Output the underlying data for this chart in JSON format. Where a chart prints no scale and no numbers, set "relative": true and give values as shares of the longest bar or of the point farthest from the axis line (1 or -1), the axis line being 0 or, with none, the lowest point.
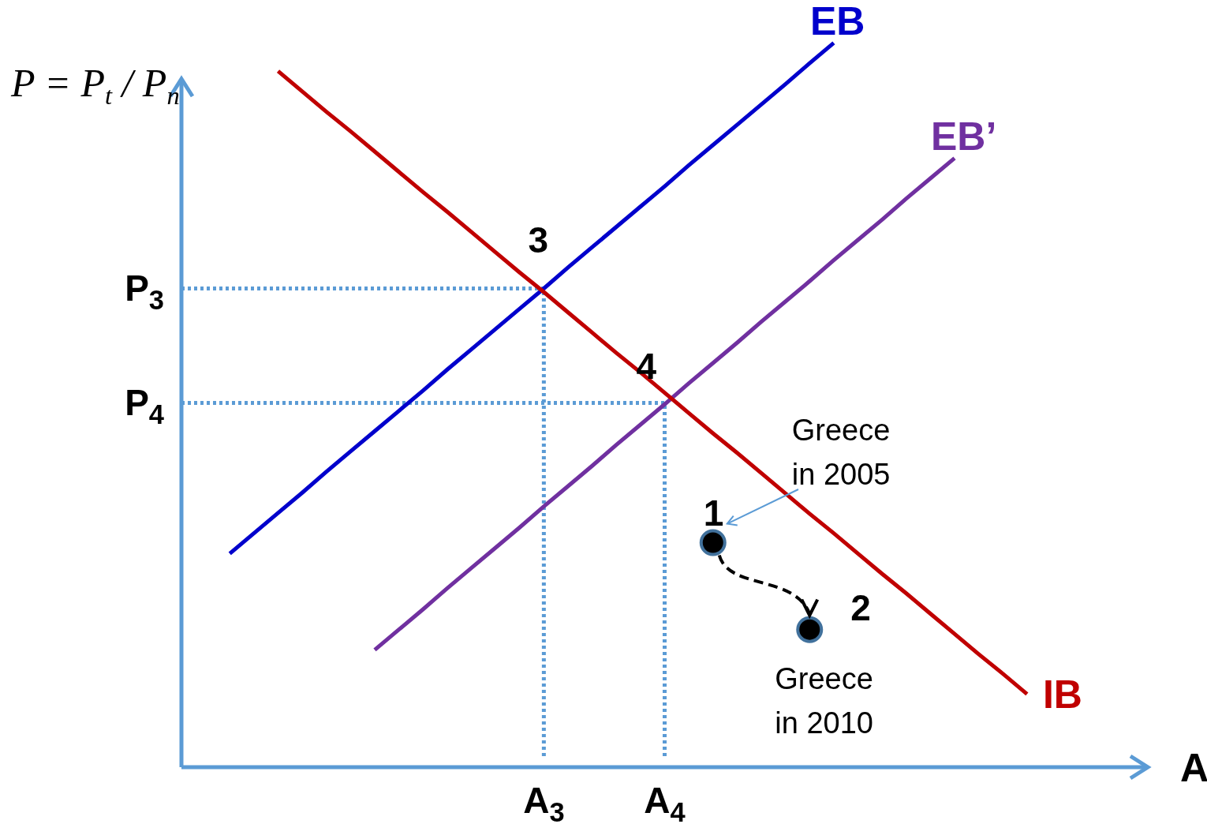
{
  "chart_data": {
    "type": "line",
    "relative": true,
    "xlabel": "A",
    "ylabel": "P = P$_{t}$ / P$_{n}$",
    "line_style": "solid",
    "marker": "none",
    "legend": false,
    "grid": false,
    "categories": [
      null,
      null,
      null,
      null,
      null,
      null,
      null,
      null,
      null,
      null,
      null,
      null,
      null,
      null,
      null,
      "A$_{3}$",
      null,
      null,
      null,
      null,
      "A$_{4}$",
      null,
      null,
      null,
      null,
      null,
      null,
      null,
      null,
      null,
      null,
      null,
      null,
      null,
      null,
      null,
      null,
      null,
      null,
      null,
      null
    ],
    "series": [
      {
        "name": "EB",
        "color": "#0000cc",
        "values": [
          null,
          null,
          0.295,
          0.323,
          0.351,
          0.379,
          0.408,
          0.436,
          0.464,
          0.492,
          0.52,
          0.549,
          0.577,
          0.605,
          0.633,
          0.661,
          0.69,
          0.718,
          0.746,
          0.774,
          0.802,
          0.831,
          0.859,
          0.887,
          0.915,
          0.943,
          0.972,
          1,
          null,
          null,
          null,
          null,
          null,
          null,
          null,
          null,
          null,
          null,
          null,
          null,
          null
        ]
      },
      {
        "name": "EB’",
        "color": "#7030a0",
        "values": [
          null,
          null,
          null,
          null,
          null,
          null,
          null,
          null,
          0.162,
          0.19,
          0.218,
          0.247,
          0.275,
          0.303,
          0.331,
          0.36,
          0.388,
          0.416,
          0.445,
          0.473,
          0.501,
          0.53,
          0.558,
          0.586,
          0.615,
          0.643,
          0.671,
          0.7,
          0.728,
          0.756,
          0.785,
          0.813,
          0.841,
          null,
          null,
          null,
          null,
          null,
          null,
          null,
          null
        ]
      },
      {
        "name": "IB",
        "color": "#c00000",
        "values": [
          null,
          null,
          null,
          null,
          0.961,
          0.933,
          0.905,
          0.878,
          0.85,
          0.822,
          0.794,
          0.767,
          0.739,
          0.711,
          0.683,
          0.656,
          0.628,
          0.6,
          0.572,
          0.545,
          0.517,
          0.489,
          0.461,
          0.434,
          0.406,
          0.378,
          0.35,
          0.323,
          0.295,
          0.267,
          0.24,
          0.212,
          0.184,
          0.156,
          0.129,
          0.101,
          null,
          null,
          null,
          null,
          null
        ]
      },
      {
        "type": "scatter",
        "marker": "circle",
        "color": "#000000",
        "values": [
          null,
          null,
          null,
          null,
          null,
          null,
          null,
          null,
          null,
          null,
          null,
          null,
          null,
          null,
          null,
          null,
          null,
          null,
          null,
          null,
          null,
          null,
          0.31,
          null,
          null,
          null,
          0.19,
          null,
          null,
          null,
          null,
          null,
          null,
          null,
          null,
          null,
          null,
          null,
          null,
          null,
          null
        ]
      }
    ],
    "ref_lines": [
      {
        "axis": "y",
        "value": 0.661,
        "label": "P$_{3}$",
        "color": "#5b9bd5",
        "line_style": "dotted"
      },
      {
        "axis": "y",
        "value": 0.503,
        "label": "P$_{4}$",
        "color": "#5b9bd5",
        "line_style": "dotted"
      },
      {
        "axis": "x",
        "value": "A$_{3}$",
        "color": "#5b9bd5",
        "line_style": "dotted"
      },
      {
        "axis": "x",
        "value": "A$_{4}$",
        "color": "#5b9bd5",
        "line_style": "dotted"
      }
    ],
    "annotations": [
      "3",
      "4",
      "1",
      "2",
      "Greece in 2005",
      "Greece in 2010"
    ]
  }
}
